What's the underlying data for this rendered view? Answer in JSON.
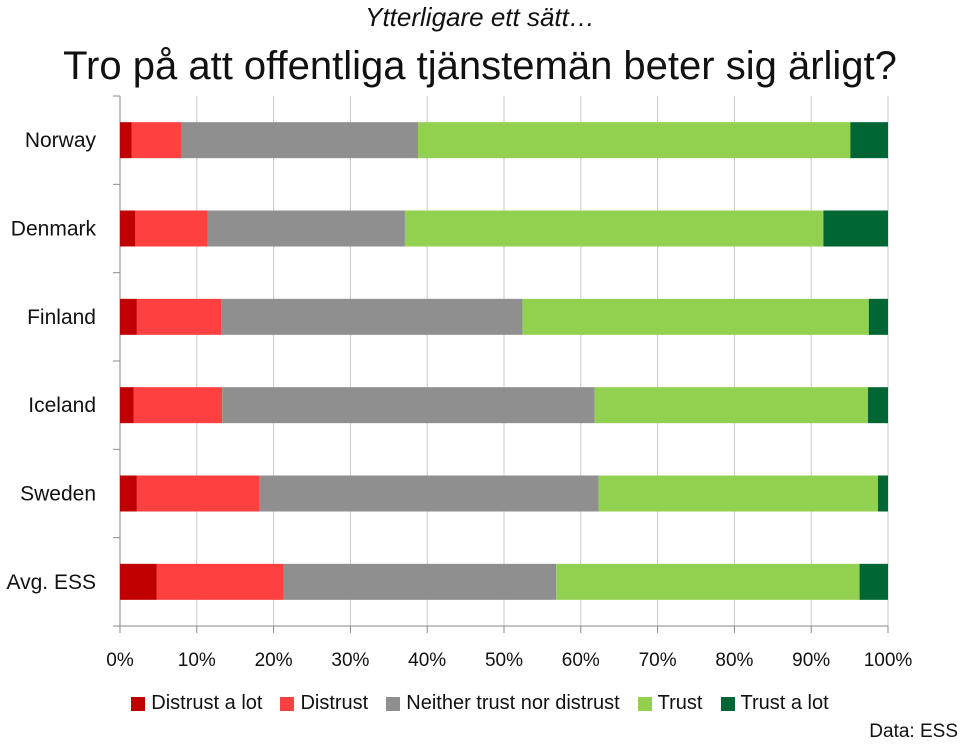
{
  "header": {
    "subtitle": "Ytterligare ett sätt…",
    "title": "Tro på att offentliga tjänstemän beter sig ärligt?"
  },
  "source": "Data: ESS",
  "chart_data": {
    "type": "bar",
    "orientation": "horizontal",
    "stacked": true,
    "categories": [
      "Norway",
      "Denmark",
      "Finland",
      "Iceland",
      "Sweden",
      "Avg. ESS"
    ],
    "series": [
      {
        "name": "Distrust a lot",
        "color": "#c00000",
        "values": [
          1.5,
          2.0,
          2.2,
          1.8,
          2.2,
          4.8
        ]
      },
      {
        "name": "Distrust",
        "color": "#ff4040",
        "values": [
          6.5,
          9.4,
          11.0,
          11.5,
          16.0,
          16.5
        ]
      },
      {
        "name": "Neither trust nor distrust",
        "color": "#8f8f8f",
        "values": [
          30.8,
          25.7,
          39.2,
          48.5,
          44.1,
          35.5
        ]
      },
      {
        "name": "Trust",
        "color": "#92d050",
        "values": [
          56.3,
          54.5,
          45.1,
          35.6,
          36.4,
          39.5
        ]
      },
      {
        "name": "Trust a lot",
        "color": "#006633",
        "values": [
          4.9,
          8.4,
          2.5,
          2.6,
          1.3,
          3.7
        ]
      }
    ],
    "xlim": [
      0,
      100
    ],
    "x_ticks": [
      "0%",
      "10%",
      "20%",
      "30%",
      "40%",
      "50%",
      "60%",
      "70%",
      "80%",
      "90%",
      "100%"
    ],
    "grid": true,
    "legend_position": "bottom"
  }
}
